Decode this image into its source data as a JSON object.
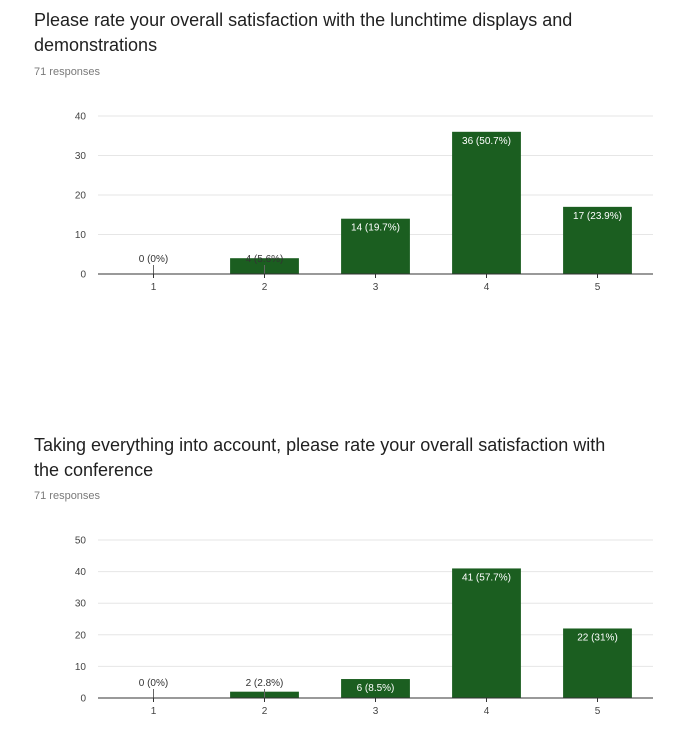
{
  "questions": [
    {
      "title": "Please rate your overall satisfaction with the lunchtime displays and demonstrations",
      "responses": "71 responses"
    },
    {
      "title": "Taking everything into account, please rate your overall satisfaction with the conference",
      "responses": "71 responses"
    }
  ],
  "colors": {
    "bar": "#1b5e20",
    "grid": "#e6e6e6",
    "axis": "#333333"
  },
  "chart_data": [
    {
      "type": "bar",
      "categories": [
        "1",
        "2",
        "3",
        "4",
        "5"
      ],
      "values": [
        0,
        4,
        14,
        36,
        17
      ],
      "labels": [
        "0 (0%)",
        "4 (5.6%)",
        "14 (19.7%)",
        "36 (50.7%)",
        "17 (23.9%)"
      ],
      "ylim": [
        0,
        40
      ],
      "yticks": [
        0,
        10,
        20,
        30,
        40
      ],
      "grid": true
    },
    {
      "type": "bar",
      "categories": [
        "1",
        "2",
        "3",
        "4",
        "5"
      ],
      "values": [
        0,
        2,
        6,
        41,
        22
      ],
      "labels": [
        "0 (0%)",
        "2 (2.8%)",
        "6 (8.5%)",
        "41 (57.7%)",
        "22 (31%)"
      ],
      "ylim": [
        0,
        50
      ],
      "yticks": [
        0,
        10,
        20,
        30,
        40,
        50
      ],
      "grid": true
    }
  ]
}
